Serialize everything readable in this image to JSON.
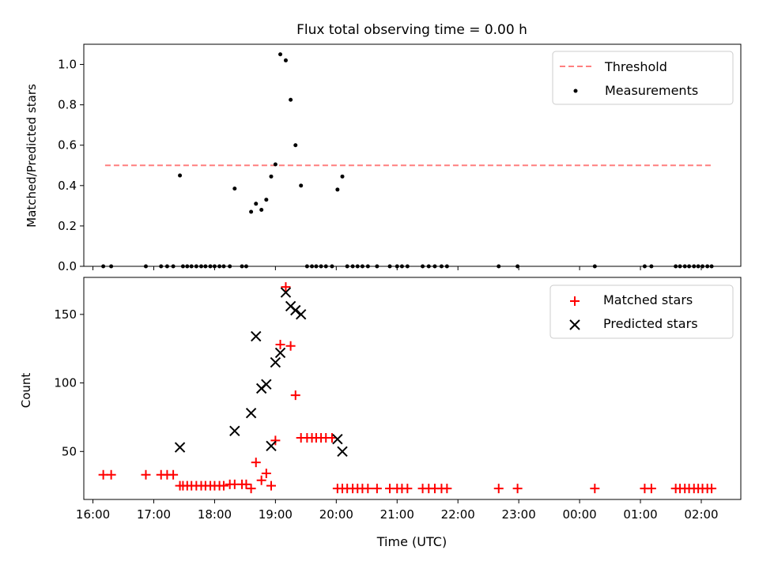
{
  "chart_data": [
    {
      "type": "scatter",
      "title": "Flux total observing time = 0.00 h",
      "xlabel": "",
      "ylabel": "Matched/Predicted stars",
      "xlim": [
        15.85,
        26.65
      ],
      "ylim": [
        0.0,
        1.1
      ],
      "yticks": [
        0.0,
        0.2,
        0.4,
        0.6,
        0.8,
        1.0
      ],
      "ytick_labels": [
        "0.0",
        "0.2",
        "0.4",
        "0.6",
        "0.8",
        "1.0"
      ],
      "legend_position": "top-right",
      "series": [
        {
          "name": "Threshold",
          "kind": "line",
          "style": "dashed",
          "color": "#ff7f7f",
          "x": [
            16.2,
            26.2
          ],
          "y": [
            0.5,
            0.5
          ]
        },
        {
          "name": "Measurements",
          "kind": "scatter",
          "marker": "dot",
          "color": "#000000",
          "x": [
            16.17,
            16.3,
            16.87,
            17.12,
            17.22,
            17.32,
            17.43,
            17.48,
            17.55,
            17.62,
            17.7,
            17.78,
            17.85,
            17.93,
            18.0,
            18.08,
            18.15,
            18.25,
            18.33,
            18.45,
            18.52,
            18.6,
            18.68,
            18.77,
            18.85,
            18.93,
            19.0,
            19.08,
            19.17,
            19.25,
            19.33,
            19.42,
            19.52,
            19.6,
            19.67,
            19.75,
            19.83,
            19.93,
            20.02,
            20.1,
            20.18,
            20.27,
            20.35,
            20.43,
            20.52,
            20.67,
            20.88,
            21.0,
            21.08,
            21.17,
            21.42,
            21.52,
            21.62,
            21.73,
            21.82,
            22.67,
            22.98,
            24.25,
            25.07,
            25.18,
            25.58,
            25.65,
            25.73,
            25.8,
            25.88,
            25.95,
            26.02,
            26.1,
            26.17
          ],
          "y": [
            0.0,
            0.0,
            0.0,
            0.0,
            0.0,
            0.0,
            0.45,
            0.0,
            0.0,
            0.0,
            0.0,
            0.0,
            0.0,
            0.0,
            0.0,
            0.0,
            0.0,
            0.0,
            0.385,
            0.0,
            0.0,
            0.27,
            0.31,
            0.28,
            0.33,
            0.445,
            0.505,
            1.05,
            1.02,
            0.825,
            0.6,
            0.4,
            0.0,
            0.0,
            0.0,
            0.0,
            0.0,
            0.0,
            0.38,
            0.445,
            0.0,
            0.0,
            0.0,
            0.0,
            0.0,
            0.0,
            0.0,
            0.0,
            0.0,
            0.0,
            0.0,
            0.0,
            0.0,
            0.0,
            0.0,
            0.0,
            0.0,
            0.0,
            0.0,
            0.0,
            0.0,
            0.0,
            0.0,
            0.0,
            0.0,
            0.0,
            0.0,
            0.0,
            0.0
          ]
        }
      ]
    },
    {
      "type": "scatter",
      "title": "",
      "xlabel": "Time (UTC)",
      "ylabel": "Count",
      "xlim": [
        15.85,
        26.65
      ],
      "ylim": [
        15,
        177
      ],
      "xticks": [
        16,
        17,
        18,
        19,
        20,
        21,
        22,
        23,
        24,
        25,
        26
      ],
      "xtick_labels": [
        "16:00",
        "17:00",
        "18:00",
        "19:00",
        "20:00",
        "21:00",
        "22:00",
        "23:00",
        "00:00",
        "01:00",
        "02:00"
      ],
      "yticks": [
        50,
        100,
        150
      ],
      "ytick_labels": [
        "50",
        "100",
        "150"
      ],
      "legend_position": "top-right",
      "series": [
        {
          "name": "Matched stars",
          "kind": "scatter",
          "marker": "plus",
          "color": "#ff0000",
          "x": [
            16.17,
            16.3,
            16.87,
            17.12,
            17.22,
            17.32,
            17.43,
            17.48,
            17.55,
            17.62,
            17.7,
            17.78,
            17.85,
            17.93,
            18.0,
            18.08,
            18.15,
            18.25,
            18.33,
            18.45,
            18.52,
            18.6,
            18.68,
            18.77,
            18.85,
            18.93,
            19.0,
            19.08,
            19.17,
            19.25,
            19.33,
            19.42,
            19.52,
            19.6,
            19.67,
            19.75,
            19.83,
            19.93,
            20.02,
            20.1,
            20.18,
            20.27,
            20.35,
            20.43,
            20.52,
            20.67,
            20.88,
            21.0,
            21.08,
            21.17,
            21.42,
            21.52,
            21.62,
            21.73,
            21.82,
            22.67,
            22.98,
            24.25,
            25.07,
            25.18,
            25.58,
            25.65,
            25.73,
            25.8,
            25.88,
            25.95,
            26.02,
            26.1,
            26.17
          ],
          "y": [
            33,
            33,
            33,
            33,
            33,
            33,
            25,
            25,
            25,
            25,
            25,
            25,
            25,
            25,
            25,
            25,
            25,
            26,
            26,
            26,
            26,
            23,
            42,
            29,
            34,
            25,
            58,
            128,
            170,
            127,
            91,
            60,
            60,
            60,
            60,
            60,
            60,
            60,
            23,
            23,
            23,
            23,
            23,
            23,
            23,
            23,
            23,
            23,
            23,
            23,
            23,
            23,
            23,
            23,
            23,
            23,
            23,
            23,
            23,
            23,
            23,
            23,
            23,
            23,
            23,
            23,
            23,
            23,
            23
          ]
        },
        {
          "name": "Predicted stars",
          "kind": "scatter",
          "marker": "x",
          "color": "#000000",
          "x": [
            17.43,
            18.33,
            18.6,
            18.68,
            18.77,
            18.85,
            18.93,
            19.0,
            19.08,
            19.17,
            19.25,
            19.33,
            19.42,
            20.02,
            20.1
          ],
          "y": [
            53,
            65,
            78,
            134,
            96,
            99,
            54,
            115,
            122,
            166,
            156,
            153,
            150,
            59,
            50
          ]
        }
      ]
    }
  ]
}
